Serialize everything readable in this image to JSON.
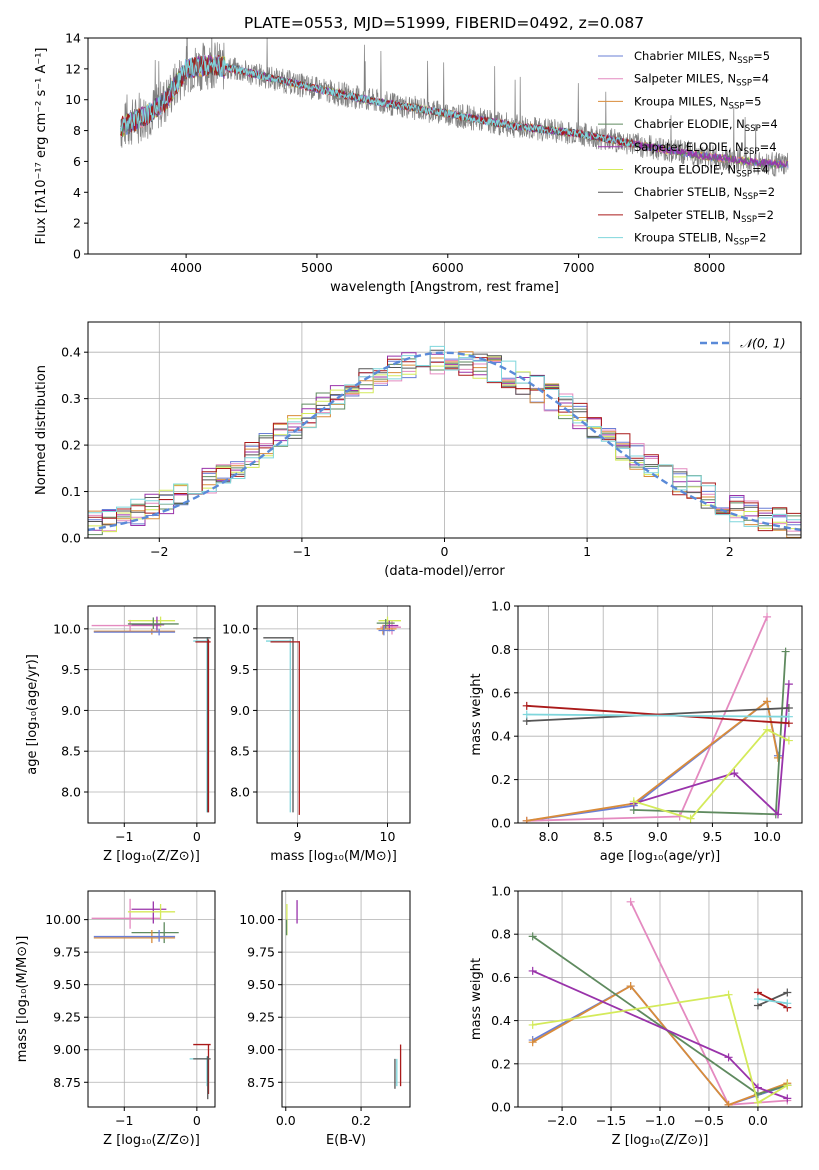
{
  "colors": {
    "chabrier_miles": "#6a7fd6",
    "salpeter_miles": "#e48ac0",
    "kroupa_miles": "#d98c3a",
    "chabrier_elodie": "#5f8a5f",
    "salpeter_elodie": "#9933aa",
    "kroupa_elodie": "#d4ea5a",
    "chabrier_stelib": "#555555",
    "salpeter_stelib": "#aa1a1a",
    "kroupa_stelib": "#7fd6dc",
    "gauss": "#5a8ad8"
  },
  "chart_data": [
    {
      "id": "spectrum",
      "type": "line",
      "title": "PLATE=0553, MJD=51999, FIBERID=0492, z=0.087",
      "xlabel": "wavelength [Angstrom, rest frame]",
      "ylabel": "Flux [fλ10⁻¹⁷ erg cm⁻² s⁻¹ A⁻¹]",
      "xlim": [
        3250,
        8700
      ],
      "ylim": [
        0,
        14
      ],
      "xticks": [
        "4000",
        "5000",
        "6000",
        "7000",
        "8000"
      ],
      "yticks": [
        "0",
        "2",
        "4",
        "6",
        "8",
        "10",
        "12",
        "14"
      ],
      "legend_position": "top-right",
      "legend": [
        {
          "text": "Chabrier MILES, N",
          "sub": "SSP",
          "suffix": "=5",
          "color": "chabrier_miles"
        },
        {
          "text": "Salpeter MILES, N",
          "sub": "SSP",
          "suffix": "=4",
          "color": "salpeter_miles"
        },
        {
          "text": "Kroupa MILES, N",
          "sub": "SSP",
          "suffix": "=5",
          "color": "kroupa_miles"
        },
        {
          "text": "Chabrier ELODIE, N",
          "sub": "SSP",
          "suffix": "=4",
          "color": "chabrier_elodie"
        },
        {
          "text": "Salpeter ELODIE, N",
          "sub": "SSP",
          "suffix": "=4",
          "color": "salpeter_elodie"
        },
        {
          "text": "Kroupa ELODIE, N",
          "sub": "SSP",
          "suffix": "=4",
          "color": "kroupa_elodie"
        },
        {
          "text": "Chabrier STELIB, N",
          "sub": "SSP",
          "suffix": "=2",
          "color": "chabrier_stelib"
        },
        {
          "text": "Salpeter STELIB, N",
          "sub": "SSP",
          "suffix": "=2",
          "color": "salpeter_stelib"
        },
        {
          "text": "Kroupa STELIB, N",
          "sub": "SSP",
          "suffix": "=2",
          "color": "kroupa_stelib"
        }
      ],
      "continuum": {
        "x": [
          3500,
          3700,
          3850,
          4000,
          4200,
          4500,
          5000,
          5500,
          6000,
          6500,
          7000,
          7500,
          8000,
          8500
        ],
        "y": [
          8.2,
          9.0,
          10.0,
          12.0,
          12.3,
          11.7,
          10.7,
          9.8,
          9.1,
          8.3,
          7.8,
          7.0,
          6.3,
          5.8
        ]
      },
      "data_x_range": [
        3500,
        8600
      ],
      "stelib_x_range": [
        3500,
        7420
      ]
    },
    {
      "id": "residuals",
      "type": "bar",
      "xlabel": "(data-model)/error",
      "ylabel": "Normed distribution",
      "xlim": [
        -2.5,
        2.5
      ],
      "ylim": [
        0,
        0.465
      ],
      "xticks": [
        {
          "v": -2,
          "label": "−2"
        },
        {
          "v": -1,
          "label": "−1"
        },
        {
          "v": 0,
          "label": "0"
        },
        {
          "v": 1,
          "label": "1"
        },
        {
          "v": 2,
          "label": "2"
        }
      ],
      "yticks": [
        {
          "v": 0,
          "label": "0.0"
        },
        {
          "v": 0.1,
          "label": "0.1"
        },
        {
          "v": 0.2,
          "label": "0.2"
        },
        {
          "v": 0.3,
          "label": "0.3"
        },
        {
          "v": 0.4,
          "label": "0.4"
        }
      ],
      "grid": true,
      "legend_position": "top-right",
      "legend_label": "𝒩(0, 1)",
      "bins": 50
    },
    {
      "id": "age_vs_Z",
      "type": "scatter",
      "xlabel": "Z [log₁₀(Z/Z⊙)]",
      "ylabel": "age  [log₁₀(age/yr)]",
      "xlim": [
        -1.5,
        0.25
      ],
      "ylim": [
        7.62,
        10.28
      ],
      "xticks": [
        {
          "v": -1,
          "label": "−1"
        },
        {
          "v": 0,
          "label": "0"
        }
      ],
      "yticks": [
        {
          "v": 8.0,
          "label": "8.0"
        },
        {
          "v": 8.5,
          "label": "8.5"
        },
        {
          "v": 9.0,
          "label": "9.0"
        },
        {
          "v": 9.5,
          "label": "9.5"
        },
        {
          "v": 10.0,
          "label": "10.0"
        }
      ],
      "grid": true,
      "points": [
        {
          "s": "salpeter_miles",
          "x": -0.92,
          "y": 10.04,
          "xlo": -1.45,
          "xhi": -0.5,
          "ylo": 9.97,
          "yhi": 10.11
        },
        {
          "s": "kroupa_elodie",
          "x": -0.5,
          "y": 10.1,
          "xlo": -0.95,
          "xhi": -0.3,
          "ylo": 10.02,
          "yhi": 10.15
        },
        {
          "s": "salpeter_elodie",
          "x": -0.55,
          "y": 10.05,
          "xlo": -0.9,
          "xhi": -0.45,
          "ylo": 9.98,
          "yhi": 10.15
        },
        {
          "s": "chabrier_elodie",
          "x": -0.6,
          "y": 10.06,
          "xlo": -0.95,
          "xhi": -0.25,
          "ylo": 10.0,
          "yhi": 10.14
        },
        {
          "s": "kroupa_miles",
          "x": -0.62,
          "y": 9.97,
          "xlo": -1.42,
          "xhi": -0.3,
          "ylo": 9.93,
          "yhi": 10.0
        },
        {
          "s": "chabrier_miles",
          "x": -0.52,
          "y": 9.96,
          "xlo": -1.42,
          "xhi": -0.3,
          "ylo": 9.92,
          "yhi": 10.0
        },
        {
          "s": "kroupa_stelib",
          "x": 0.14,
          "y": 9.85,
          "xlo": -0.05,
          "xhi": 0.17,
          "ylo": 7.75,
          "yhi": 9.9
        },
        {
          "s": "chabrier_stelib",
          "x": 0.15,
          "y": 9.89,
          "xlo": -0.05,
          "xhi": 0.19,
          "ylo": 7.75,
          "yhi": 9.9
        },
        {
          "s": "salpeter_stelib",
          "x": 0.16,
          "y": 9.84,
          "xlo": -0.02,
          "xhi": 0.19,
          "ylo": 7.75,
          "yhi": 9.87
        }
      ]
    },
    {
      "id": "age_vs_mass",
      "type": "scatter",
      "xlabel": "mass [log₁₀(M/M⊙)]",
      "ylabel": "",
      "xlim": [
        8.55,
        10.25
      ],
      "ylim": [
        7.62,
        10.28
      ],
      "xticks": [
        {
          "v": 9,
          "label": "9"
        },
        {
          "v": 10,
          "label": "10"
        }
      ],
      "yticks": [
        {
          "v": 8.0,
          "label": "8.0"
        },
        {
          "v": 8.5,
          "label": "8.5"
        },
        {
          "v": 9.0,
          "label": "9.0"
        },
        {
          "v": 9.5,
          "label": "9.5"
        },
        {
          "v": 10.0,
          "label": "10.0"
        }
      ],
      "grid": true,
      "points": [
        {
          "s": "salpeter_miles",
          "x": 10.05,
          "y": 10.02,
          "xlo": 9.92,
          "xhi": 10.15,
          "ylo": 9.93,
          "yhi": 10.1
        },
        {
          "s": "kroupa_elodie",
          "x": 10.0,
          "y": 10.1,
          "xlo": 9.9,
          "xhi": 10.15,
          "ylo": 10.02,
          "yhi": 10.15
        },
        {
          "s": "salpeter_elodie",
          "x": 10.02,
          "y": 10.04,
          "xlo": 9.95,
          "xhi": 10.12,
          "ylo": 9.97,
          "yhi": 10.1
        },
        {
          "s": "chabrier_elodie",
          "x": 9.98,
          "y": 10.07,
          "xlo": 9.88,
          "xhi": 10.08,
          "ylo": 10.0,
          "yhi": 10.12
        },
        {
          "s": "kroupa_miles",
          "x": 9.95,
          "y": 10.0,
          "xlo": 9.88,
          "xhi": 10.1,
          "ylo": 9.93,
          "yhi": 10.05
        },
        {
          "s": "chabrier_miles",
          "x": 9.96,
          "y": 9.98,
          "xlo": 9.9,
          "xhi": 10.08,
          "ylo": 9.92,
          "yhi": 10.04
        },
        {
          "s": "chabrier_stelib",
          "x": 8.95,
          "y": 9.89,
          "xlo": 8.62,
          "xhi": 8.95,
          "ylo": 7.75,
          "yhi": 9.9
        },
        {
          "s": "kroupa_stelib",
          "x": 8.92,
          "y": 9.85,
          "xlo": 8.65,
          "xhi": 8.92,
          "ylo": 7.75,
          "yhi": 9.87
        },
        {
          "s": "salpeter_stelib",
          "x": 9.02,
          "y": 9.84,
          "xlo": 8.7,
          "xhi": 9.02,
          "ylo": 7.72,
          "yhi": 9.85
        }
      ]
    },
    {
      "id": "weight_vs_age",
      "type": "line",
      "xlabel": "age  [log₁₀(age/yr)]",
      "ylabel": "mass weight",
      "xlim": [
        7.72,
        10.32
      ],
      "ylim": [
        0,
        1
      ],
      "xticks": [
        {
          "v": 8.0,
          "label": "8.0"
        },
        {
          "v": 8.5,
          "label": "8.5"
        },
        {
          "v": 9.0,
          "label": "9.0"
        },
        {
          "v": 9.5,
          "label": "9.5"
        },
        {
          "v": 10.0,
          "label": "10.0"
        }
      ],
      "yticks": [
        {
          "v": 0,
          "label": "0.0"
        },
        {
          "v": 0.2,
          "label": "0.2"
        },
        {
          "v": 0.4,
          "label": "0.4"
        },
        {
          "v": 0.6,
          "label": "0.6"
        },
        {
          "v": 0.8,
          "label": "0.8"
        },
        {
          "v": 1.0,
          "label": "1.0"
        }
      ],
      "grid": true,
      "series": [
        {
          "s": "chabrier_miles",
          "x": [
            7.8,
            8.78,
            10.0,
            10.1
          ],
          "y": [
            0.01,
            0.08,
            0.56,
            0.31
          ]
        },
        {
          "s": "salpeter_miles",
          "x": [
            7.8,
            9.2,
            10.0
          ],
          "y": [
            0.01,
            0.03,
            0.95
          ]
        },
        {
          "s": "kroupa_miles",
          "x": [
            7.8,
            8.78,
            10.0,
            10.1
          ],
          "y": [
            0.01,
            0.09,
            0.56,
            0.3
          ]
        },
        {
          "s": "chabrier_elodie",
          "x": [
            8.78,
            10.08,
            10.17
          ],
          "y": [
            0.06,
            0.04,
            0.79
          ]
        },
        {
          "s": "salpeter_elodie",
          "x": [
            8.78,
            9.7,
            10.1,
            10.2
          ],
          "y": [
            0.09,
            0.23,
            0.04,
            0.64
          ]
        },
        {
          "s": "kroupa_elodie",
          "x": [
            8.78,
            9.3,
            10.0,
            10.2
          ],
          "y": [
            0.1,
            0.02,
            0.43,
            0.38
          ]
        },
        {
          "s": "chabrier_stelib",
          "x": [
            7.8,
            10.2
          ],
          "y": [
            0.47,
            0.53
          ]
        },
        {
          "s": "salpeter_stelib",
          "x": [
            7.8,
            10.2
          ],
          "y": [
            0.54,
            0.46
          ]
        },
        {
          "s": "kroupa_stelib",
          "x": [
            7.8,
            10.2
          ],
          "y": [
            0.5,
            0.49
          ]
        }
      ]
    },
    {
      "id": "mass_vs_Z",
      "type": "scatter",
      "xlabel": "Z [log₁₀(Z/Z⊙)]",
      "ylabel": "mass [log₁₀(M/M⊙)]",
      "xlim": [
        -1.5,
        0.25
      ],
      "ylim": [
        8.56,
        10.22
      ],
      "xticks": [
        {
          "v": -1,
          "label": "−1"
        },
        {
          "v": 0,
          "label": "0"
        }
      ],
      "yticks": [
        {
          "v": 8.75,
          "label": "8.75"
        },
        {
          "v": 9.0,
          "label": "9.00"
        },
        {
          "v": 9.25,
          "label": "9.25"
        },
        {
          "v": 9.5,
          "label": "9.50"
        },
        {
          "v": 9.75,
          "label": "9.75"
        },
        {
          "v": 10.0,
          "label": "10.00"
        }
      ],
      "grid": true,
      "points": [
        {
          "s": "salpeter_miles",
          "x": -0.92,
          "y": 10.01,
          "xlo": -1.45,
          "xhi": -0.5,
          "ylo": 9.93,
          "yhi": 10.16
        },
        {
          "s": "salpeter_elodie",
          "x": -0.6,
          "y": 10.08,
          "xlo": -0.9,
          "xhi": -0.42,
          "ylo": 9.97,
          "yhi": 10.14
        },
        {
          "s": "kroupa_elodie",
          "x": -0.5,
          "y": 10.06,
          "xlo": -0.95,
          "xhi": -0.3,
          "ylo": 10.0,
          "yhi": 10.12
        },
        {
          "s": "chabrier_elodie",
          "x": -0.45,
          "y": 9.9,
          "xlo": -0.9,
          "xhi": -0.25,
          "ylo": 9.82,
          "yhi": 9.98
        },
        {
          "s": "kroupa_miles",
          "x": -0.62,
          "y": 9.86,
          "xlo": -1.42,
          "xhi": -0.3,
          "ylo": 9.82,
          "yhi": 9.92
        },
        {
          "s": "chabrier_miles",
          "x": -0.52,
          "y": 9.87,
          "xlo": -1.42,
          "xhi": -0.3,
          "ylo": 9.83,
          "yhi": 9.92
        },
        {
          "s": "salpeter_stelib",
          "x": 0.16,
          "y": 9.04,
          "xlo": -0.05,
          "xhi": 0.19,
          "ylo": 8.66,
          "yhi": 9.04
        },
        {
          "s": "kroupa_stelib",
          "x": 0.14,
          "y": 8.93,
          "xlo": -0.1,
          "xhi": 0.17,
          "ylo": 8.72,
          "yhi": 8.95
        },
        {
          "s": "chabrier_stelib",
          "x": 0.15,
          "y": 8.93,
          "xlo": -0.05,
          "xhi": 0.19,
          "ylo": 8.62,
          "yhi": 8.95
        }
      ]
    },
    {
      "id": "mass_vs_ebv",
      "type": "scatter",
      "xlabel": "E(B-V)",
      "ylabel": "",
      "xlim": [
        -0.01,
        0.33
      ],
      "ylim": [
        8.56,
        10.22
      ],
      "xticks": [
        {
          "v": 0.0,
          "label": "0.0"
        },
        {
          "v": 0.2,
          "label": "0.2"
        }
      ],
      "yticks": [
        {
          "v": 8.75,
          "label": "8.75"
        },
        {
          "v": 9.0,
          "label": "9.00"
        },
        {
          "v": 9.25,
          "label": "9.25"
        },
        {
          "v": 9.5,
          "label": "9.50"
        },
        {
          "v": 9.75,
          "label": "9.75"
        },
        {
          "v": 10.0,
          "label": "10.00"
        }
      ],
      "grid": true,
      "points": [
        {
          "s": "salpeter_elodie",
          "x": 0.03,
          "y": 10.05,
          "xlo": 0.03,
          "xhi": 0.03,
          "ylo": 9.97,
          "yhi": 10.15
        },
        {
          "s": "kroupa_elodie",
          "x": 0.003,
          "y": 10.0,
          "xlo": 0.003,
          "xhi": 0.003,
          "ylo": 9.88,
          "yhi": 10.12
        },
        {
          "s": "chabrier_elodie",
          "x": 0.002,
          "y": 9.95,
          "xlo": 0.002,
          "xhi": 0.002,
          "ylo": 9.88,
          "yhi": 10.0
        },
        {
          "s": "salpeter_stelib",
          "x": 0.305,
          "y": 8.9,
          "xlo": 0.305,
          "xhi": 0.305,
          "ylo": 8.72,
          "yhi": 9.04
        },
        {
          "s": "kroupa_stelib",
          "x": 0.295,
          "y": 8.85,
          "xlo": 0.295,
          "xhi": 0.295,
          "ylo": 8.72,
          "yhi": 8.93
        },
        {
          "s": "chabrier_stelib",
          "x": 0.29,
          "y": 8.8,
          "xlo": 0.29,
          "xhi": 0.29,
          "ylo": 8.7,
          "yhi": 8.93
        }
      ]
    },
    {
      "id": "weight_vs_Z",
      "type": "line",
      "xlabel": "Z [log₁₀(Z/Z⊙)]",
      "ylabel": "mass weight",
      "xlim": [
        -2.45,
        0.45
      ],
      "ylim": [
        0,
        1
      ],
      "xticks": [
        {
          "v": -2.0,
          "label": "−2.0"
        },
        {
          "v": -1.5,
          "label": "−1.5"
        },
        {
          "v": -1.0,
          "label": "−1.0"
        },
        {
          "v": -0.5,
          "label": "−0.5"
        },
        {
          "v": 0.0,
          "label": "0.0"
        }
      ],
      "yticks": [
        {
          "v": 0,
          "label": "0.0"
        },
        {
          "v": 0.2,
          "label": "0.2"
        },
        {
          "v": 0.4,
          "label": "0.4"
        },
        {
          "v": 0.6,
          "label": "0.6"
        },
        {
          "v": 0.8,
          "label": "0.8"
        },
        {
          "v": 1.0,
          "label": "1.0"
        }
      ],
      "grid": true,
      "series": [
        {
          "s": "chabrier_miles",
          "x": [
            -2.3,
            -1.3,
            -0.3,
            0.3
          ],
          "y": [
            0.31,
            0.56,
            0.01,
            0.1
          ]
        },
        {
          "s": "salpeter_miles",
          "x": [
            -1.3,
            -0.3,
            0.3
          ],
          "y": [
            0.95,
            0.01,
            0.03
          ]
        },
        {
          "s": "kroupa_miles",
          "x": [
            -2.3,
            -1.3,
            -0.3,
            0.3
          ],
          "y": [
            0.3,
            0.56,
            0.01,
            0.11
          ]
        },
        {
          "s": "chabrier_elodie",
          "x": [
            -2.3,
            0.0,
            0.3
          ],
          "y": [
            0.79,
            0.06,
            0.1
          ]
        },
        {
          "s": "salpeter_elodie",
          "x": [
            -2.3,
            -0.3,
            0.0,
            0.3
          ],
          "y": [
            0.63,
            0.23,
            0.09,
            0.04
          ]
        },
        {
          "s": "kroupa_elodie",
          "x": [
            -2.3,
            -0.3,
            0.0,
            0.3
          ],
          "y": [
            0.38,
            0.52,
            0.02,
            0.1
          ]
        },
        {
          "s": "chabrier_stelib",
          "x": [
            0.0,
            0.3
          ],
          "y": [
            0.47,
            0.53
          ]
        },
        {
          "s": "salpeter_stelib",
          "x": [
            0.0,
            0.3
          ],
          "y": [
            0.53,
            0.46
          ]
        },
        {
          "s": "kroupa_stelib",
          "x": [
            0.0,
            0.3
          ],
          "y": [
            0.5,
            0.48
          ]
        }
      ]
    }
  ]
}
